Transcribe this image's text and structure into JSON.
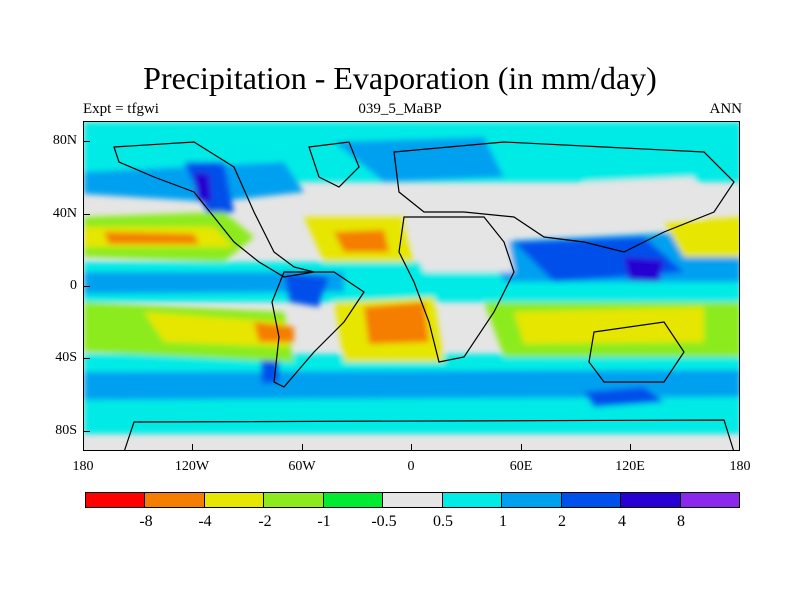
{
  "map": {
    "title": "Precipitation - Evaporation (in mm/day)",
    "subtitle_left": "Expt = tfgwi",
    "subtitle_center": "039_5_MaBP",
    "subtitle_right": "ANN",
    "y_ticks": [
      "80N",
      "40N",
      "0",
      "40S",
      "80S"
    ],
    "x_ticks": [
      "180",
      "120W",
      "60W",
      "0",
      "60E",
      "120E",
      "180"
    ]
  },
  "colorbar": {
    "colors": [
      "#ff0000",
      "#f57d00",
      "#e6e600",
      "#8ceb1e",
      "#00eb32",
      "#e5e5e5",
      "#00ebe6",
      "#00a0f0",
      "#0050eb",
      "#2800d2",
      "#8c28eb"
    ],
    "labels": [
      "-8",
      "-4",
      "-2",
      "-1",
      "-0.5",
      "0.5",
      "1",
      "2",
      "4",
      "8"
    ]
  },
  "colors": {
    "dry_orange": "#f57d00",
    "dry_yellow": "#e6e600",
    "dry_lightgreen": "#8ceb1e",
    "neutral_grey": "#e5e5e5",
    "wet_cyan": "#00ebe6",
    "wet_lightblue": "#00a0f0",
    "wet_blue": "#0050eb",
    "wet_darkblue": "#2800d2",
    "wet_violet": "#8c28eb"
  }
}
